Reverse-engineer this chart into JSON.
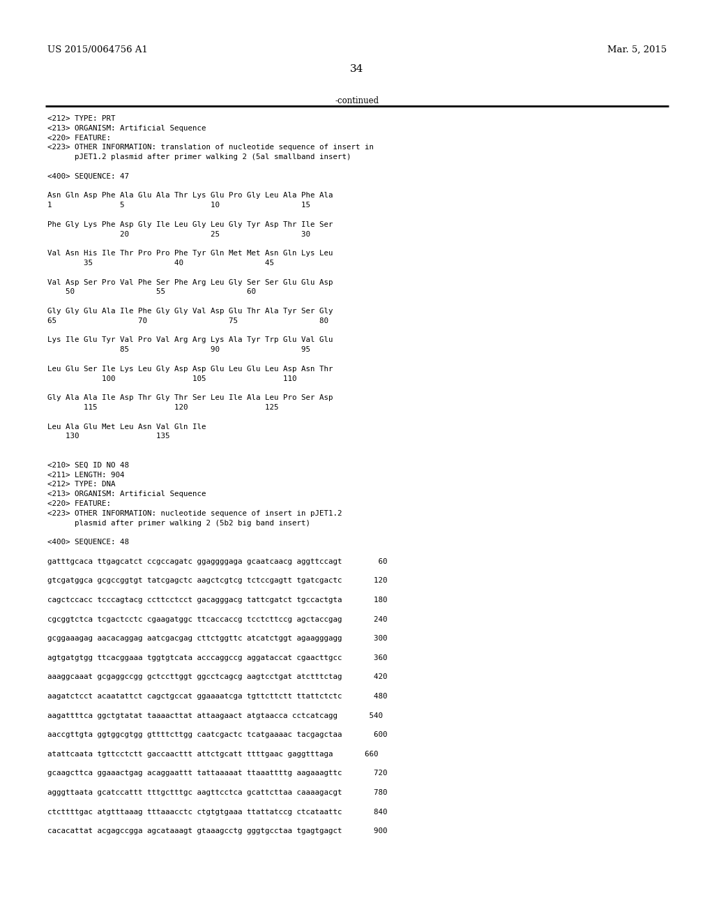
{
  "patent_num": "US 2015/0064756 A1",
  "date": "Mar. 5, 2015",
  "page_num": "34",
  "continued": "-continued",
  "background_color": "#ffffff",
  "text_color": "#000000",
  "lines": [
    "<212> TYPE: PRT",
    "<213> ORGANISM: Artificial Sequence",
    "<220> FEATURE:",
    "<223> OTHER INFORMATION: translation of nucleotide sequence of insert in",
    "      pJET1.2 plasmid after primer walking 2 (5al smallband insert)",
    "",
    "<400> SEQUENCE: 47",
    "",
    "Asn Gln Asp Phe Ala Glu Ala Thr Lys Glu Pro Gly Leu Ala Phe Ala",
    "1               5                   10                  15",
    "",
    "Phe Gly Lys Phe Asp Gly Ile Leu Gly Leu Gly Tyr Asp Thr Ile Ser",
    "                20                  25                  30",
    "",
    "Val Asn His Ile Thr Pro Pro Phe Tyr Gln Met Met Asn Gln Lys Leu",
    "        35                  40                  45",
    "",
    "Val Asp Ser Pro Val Phe Ser Phe Arg Leu Gly Ser Ser Glu Glu Asp",
    "    50                  55                  60",
    "",
    "Gly Gly Glu Ala Ile Phe Gly Gly Val Asp Glu Thr Ala Tyr Ser Gly",
    "65                  70                  75                  80",
    "",
    "Lys Ile Glu Tyr Val Pro Val Arg Arg Lys Ala Tyr Trp Glu Val Glu",
    "                85                  90                  95",
    "",
    "Leu Glu Ser Ile Lys Leu Gly Asp Asp Glu Leu Glu Leu Asp Asn Thr",
    "            100                 105                 110",
    "",
    "Gly Ala Ala Ile Asp Thr Gly Thr Ser Leu Ile Ala Leu Pro Ser Asp",
    "        115                 120                 125",
    "",
    "Leu Ala Glu Met Leu Asn Val Gln Ile",
    "    130                 135",
    "",
    "",
    "<210> SEQ ID NO 48",
    "<211> LENGTH: 904",
    "<212> TYPE: DNA",
    "<213> ORGANISM: Artificial Sequence",
    "<220> FEATURE:",
    "<223> OTHER INFORMATION: nucleotide sequence of insert in pJET1.2",
    "      plasmid after primer walking 2 (5b2 big band insert)",
    "",
    "<400> SEQUENCE: 48",
    "",
    "gatttgcaca ttgagcatct ccgccagatc ggaggggaga gcaatcaacg aggttccagt        60",
    "",
    "gtcgatggca gcgccggtgt tatcgagctc aagctcgtcg tctccgagtt tgatcgactc       120",
    "",
    "cagctccacc tcccagtacg ccttcctcct gacagggacg tattcgatct tgccactgta       180",
    "",
    "cgcggtctca tcgactcctc cgaagatggc ttcaccaccg tcctcttccg agctaccgag       240",
    "",
    "gcggaaagag aacacaggag aatcgacgag cttctggttc atcatctggt agaagggagg       300",
    "",
    "agtgatgtgg ttcacggaaa tggtgtcata acccaggccg aggataccat cgaacttgcc       360",
    "",
    "aaaggcaaat gcgaggccgg gctccttggt ggcctcagcg aagtcctgat atctttctag       420",
    "",
    "aagatctcct acaatattct cagctgccat ggaaaatcga tgttcttctt ttattctctc       480",
    "",
    "aagattttca ggctgtatat taaaacttat attaagaact atgtaacca cctcatcagg       540",
    "",
    "aaccgttgta ggtggcgtgg gttttcttgg caatcgactc tcatgaaaac tacgagctaa       600",
    "",
    "atattcaata tgttcctctt gaccaacttt attctgcatt ttttgaac gaggtttaga       660",
    "",
    "gcaagcttca ggaaactgag acaggaattt tattaaaaat ttaaattttg aagaaagttc       720",
    "",
    "agggttaata gcatccattt tttgctttgc aagttcctca gcattcttaa caaaagacgt       780",
    "",
    "ctcttttgac atgtttaaag tttaaacctc ctgtgtgaaa ttattatccg ctcataattc       840",
    "",
    "cacacattat acgagccgga agcataaagt gtaaagcctg gggtgcctaa tgagtgagct       900"
  ]
}
